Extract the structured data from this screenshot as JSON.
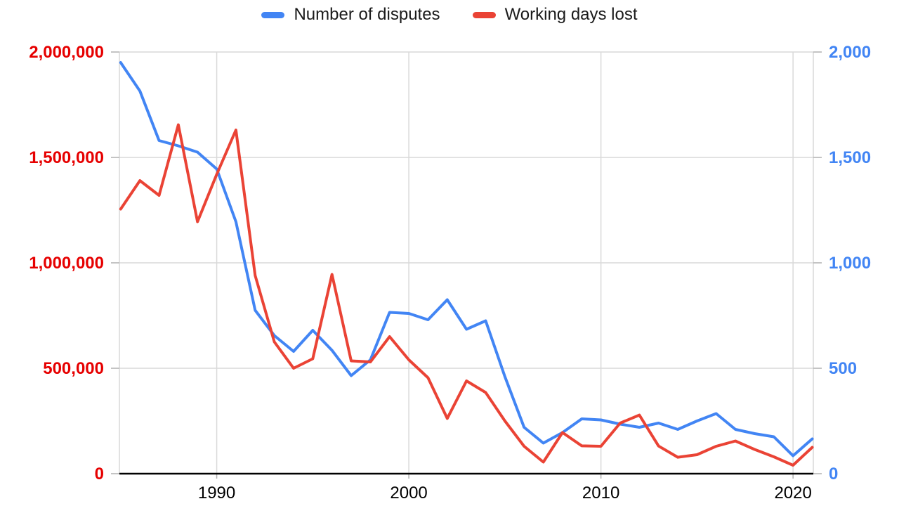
{
  "legend": {
    "items": [
      {
        "label": "Number of disputes",
        "color": "#4285f4"
      },
      {
        "label": "Working days lost",
        "color": "#ea4335"
      }
    ]
  },
  "chart_data": {
    "type": "line",
    "title": "",
    "xlabel": "",
    "ylabel_left": "",
    "ylabel_right": "",
    "grid": true,
    "legend_position": "top",
    "x": [
      1985,
      1986,
      1987,
      1988,
      1989,
      1990,
      1991,
      1992,
      1993,
      1994,
      1995,
      1996,
      1997,
      1998,
      1999,
      2000,
      2001,
      2002,
      2003,
      2004,
      2005,
      2006,
      2007,
      2008,
      2009,
      2010,
      2011,
      2012,
      2013,
      2014,
      2015,
      2016,
      2017,
      2018,
      2019,
      2020,
      2021
    ],
    "series": [
      {
        "name": "Number of disputes",
        "axis": "right",
        "color": "#4285f4",
        "values": [
          1950,
          1815,
          1580,
          1555,
          1525,
          1445,
          1195,
          775,
          655,
          580,
          680,
          585,
          465,
          540,
          765,
          760,
          730,
          825,
          685,
          725,
          460,
          220,
          145,
          195,
          260,
          255,
          235,
          220,
          240,
          210,
          250,
          285,
          210,
          190,
          175,
          85,
          165
        ]
      },
      {
        "name": "Working days lost",
        "axis": "left",
        "color": "#ea4335",
        "values": [
          1255000,
          1390000,
          1320000,
          1655000,
          1195000,
          1420000,
          1630000,
          940000,
          625000,
          500000,
          545000,
          945000,
          535000,
          530000,
          650000,
          540000,
          455000,
          262000,
          440000,
          385000,
          250000,
          130000,
          55000,
          195000,
          132000,
          130000,
          240000,
          278000,
          131000,
          78000,
          90000,
          130000,
          155000,
          115000,
          80000,
          40000,
          125000
        ]
      }
    ],
    "left_axis": {
      "label_color": "#e60000",
      "range": [
        0,
        2000000
      ],
      "ticks": [
        0,
        500000,
        1000000,
        1500000,
        2000000
      ],
      "tick_labels": [
        "0",
        "500,000",
        "1,000,000",
        "1,500,000",
        "2,000,000"
      ]
    },
    "right_axis": {
      "label_color": "#4285f4",
      "range": [
        0,
        2000
      ],
      "ticks": [
        0,
        500,
        1000,
        1500,
        2000
      ],
      "tick_labels": [
        "0",
        "500",
        "1,000",
        "1,500",
        "2,000"
      ]
    },
    "x_axis": {
      "label_color": "#000000",
      "tick_years": [
        1990,
        2000,
        2010,
        2020
      ],
      "tick_labels": [
        "1990",
        "2000",
        "2010",
        "2020"
      ]
    },
    "style": {
      "gridline_color": "#d9d9d9",
      "tick_color": "#b0b0b0",
      "axis_line_color": "#000000",
      "background": "#ffffff"
    }
  }
}
